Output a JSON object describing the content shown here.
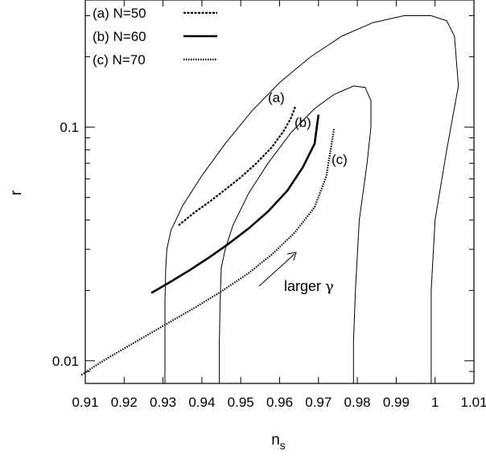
{
  "chart_data": {
    "type": "line",
    "xlabel_main": "n",
    "xlabel_sub": "s",
    "ylabel": "r",
    "xlim": [
      0.91,
      1.01
    ],
    "ylim": [
      0.008,
      0.35
    ],
    "yscale": "log",
    "grid": false,
    "legend_position": "top-left",
    "x_ticks": [
      {
        "value": 0.91,
        "label": "0.91"
      },
      {
        "value": 0.92,
        "label": "0.92"
      },
      {
        "value": 0.93,
        "label": "0.93"
      },
      {
        "value": 0.94,
        "label": "0.94"
      },
      {
        "value": 0.95,
        "label": "0.95"
      },
      {
        "value": 0.96,
        "label": "0.96"
      },
      {
        "value": 0.97,
        "label": "0.97"
      },
      {
        "value": 0.98,
        "label": "0.98"
      },
      {
        "value": 0.99,
        "label": "0.99"
      },
      {
        "value": 1.0,
        "label": "1"
      },
      {
        "value": 1.01,
        "label": "1.01"
      }
    ],
    "y_ticks": [
      {
        "value": 0.01,
        "label": "0.01"
      },
      {
        "value": 0.1,
        "label": "0.1"
      }
    ],
    "series": [
      {
        "name": "(a) N=50",
        "label": "(a)",
        "style": "dashed",
        "x": [
          0.934,
          0.938,
          0.942,
          0.946,
          0.95,
          0.954,
          0.958,
          0.961,
          0.963,
          0.964
        ],
        "y": [
          0.038,
          0.043,
          0.048,
          0.054,
          0.061,
          0.07,
          0.082,
          0.096,
          0.11,
          0.122
        ]
      },
      {
        "name": "(b) N=60",
        "label": "(b)",
        "style": "solid",
        "x": [
          0.927,
          0.932,
          0.937,
          0.942,
          0.947,
          0.952,
          0.957,
          0.962,
          0.966,
          0.969,
          0.97
        ],
        "y": [
          0.0195,
          0.0218,
          0.0245,
          0.0278,
          0.0318,
          0.0368,
          0.0435,
          0.0535,
          0.0675,
          0.085,
          0.113
        ]
      },
      {
        "name": "(c) N=70",
        "label": "(c)",
        "style": "dotted",
        "x": [
          0.909,
          0.915,
          0.922,
          0.93,
          0.938,
          0.945,
          0.952,
          0.958,
          0.964,
          0.969,
          0.972,
          0.974
        ],
        "y": [
          0.0087,
          0.0101,
          0.0118,
          0.0141,
          0.0168,
          0.0198,
          0.0237,
          0.0285,
          0.0355,
          0.0455,
          0.0615,
          0.098
        ]
      }
    ],
    "contours": [
      {
        "name": "outer-contour",
        "x": [
          0.9305,
          0.9305,
          0.9305,
          0.9307,
          0.931,
          0.932,
          0.935,
          0.94,
          0.946,
          0.953,
          0.96,
          0.968,
          0.976,
          0.984,
          0.992,
          0.999,
          1.003,
          1.005,
          1.006,
          1.003,
          1.0,
          0.999,
          0.999
        ],
        "y": [
          0.008,
          0.012,
          0.018,
          0.025,
          0.03,
          0.036,
          0.046,
          0.062,
          0.085,
          0.118,
          0.155,
          0.2,
          0.245,
          0.28,
          0.3,
          0.3,
          0.285,
          0.245,
          0.15,
          0.08,
          0.04,
          0.02,
          0.008
        ]
      },
      {
        "name": "inner-contour",
        "x": [
          0.9445,
          0.9445,
          0.9447,
          0.945,
          0.946,
          0.948,
          0.952,
          0.957,
          0.963,
          0.969,
          0.974,
          0.979,
          0.982,
          0.9835,
          0.9835,
          0.9825,
          0.9805,
          0.9795,
          0.979,
          0.979
        ],
        "y": [
          0.008,
          0.012,
          0.018,
          0.025,
          0.03,
          0.038,
          0.052,
          0.07,
          0.095,
          0.12,
          0.138,
          0.15,
          0.148,
          0.13,
          0.1,
          0.07,
          0.04,
          0.02,
          0.012,
          0.008
        ]
      }
    ],
    "annotation_label_prefix": "larger ",
    "annotation_label_symbol": "γ"
  }
}
